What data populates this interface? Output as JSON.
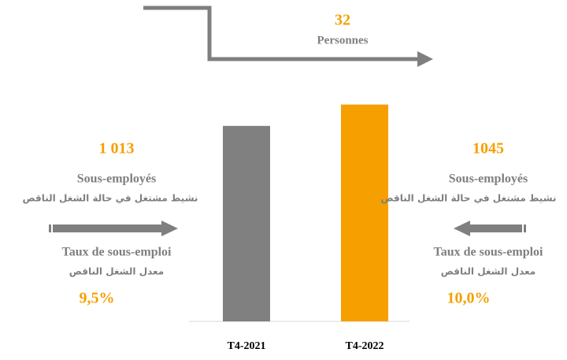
{
  "chart_data": {
    "type": "bar",
    "categories": [
      "T4-2021",
      "T4-2022"
    ],
    "values": [
      1013,
      1045
    ],
    "value_labels": [
      "1 013",
      "1045"
    ],
    "colors": [
      "#808080",
      "#f5a000"
    ],
    "ylim": [
      720,
      1060
    ],
    "change": {
      "label": "32",
      "unit": "Personnes"
    },
    "panels": [
      {
        "label_fr": "Sous-employés",
        "label_ar": "نشيط مشتغل في حالة الشغل الناقص",
        "rate_label_fr": "Taux de sous-emploi",
        "rate_label_ar": "معدل الشغل الناقص",
        "rate": "9,5%"
      },
      {
        "label_fr": "Sous-employés",
        "label_ar": "نشيط مشتغل في حالة الشغل الناقص",
        "rate_label_fr": "Taux de sous-emploi",
        "rate_label_ar": "معدل الشغل الناقص",
        "rate": "10,0%"
      }
    ]
  }
}
